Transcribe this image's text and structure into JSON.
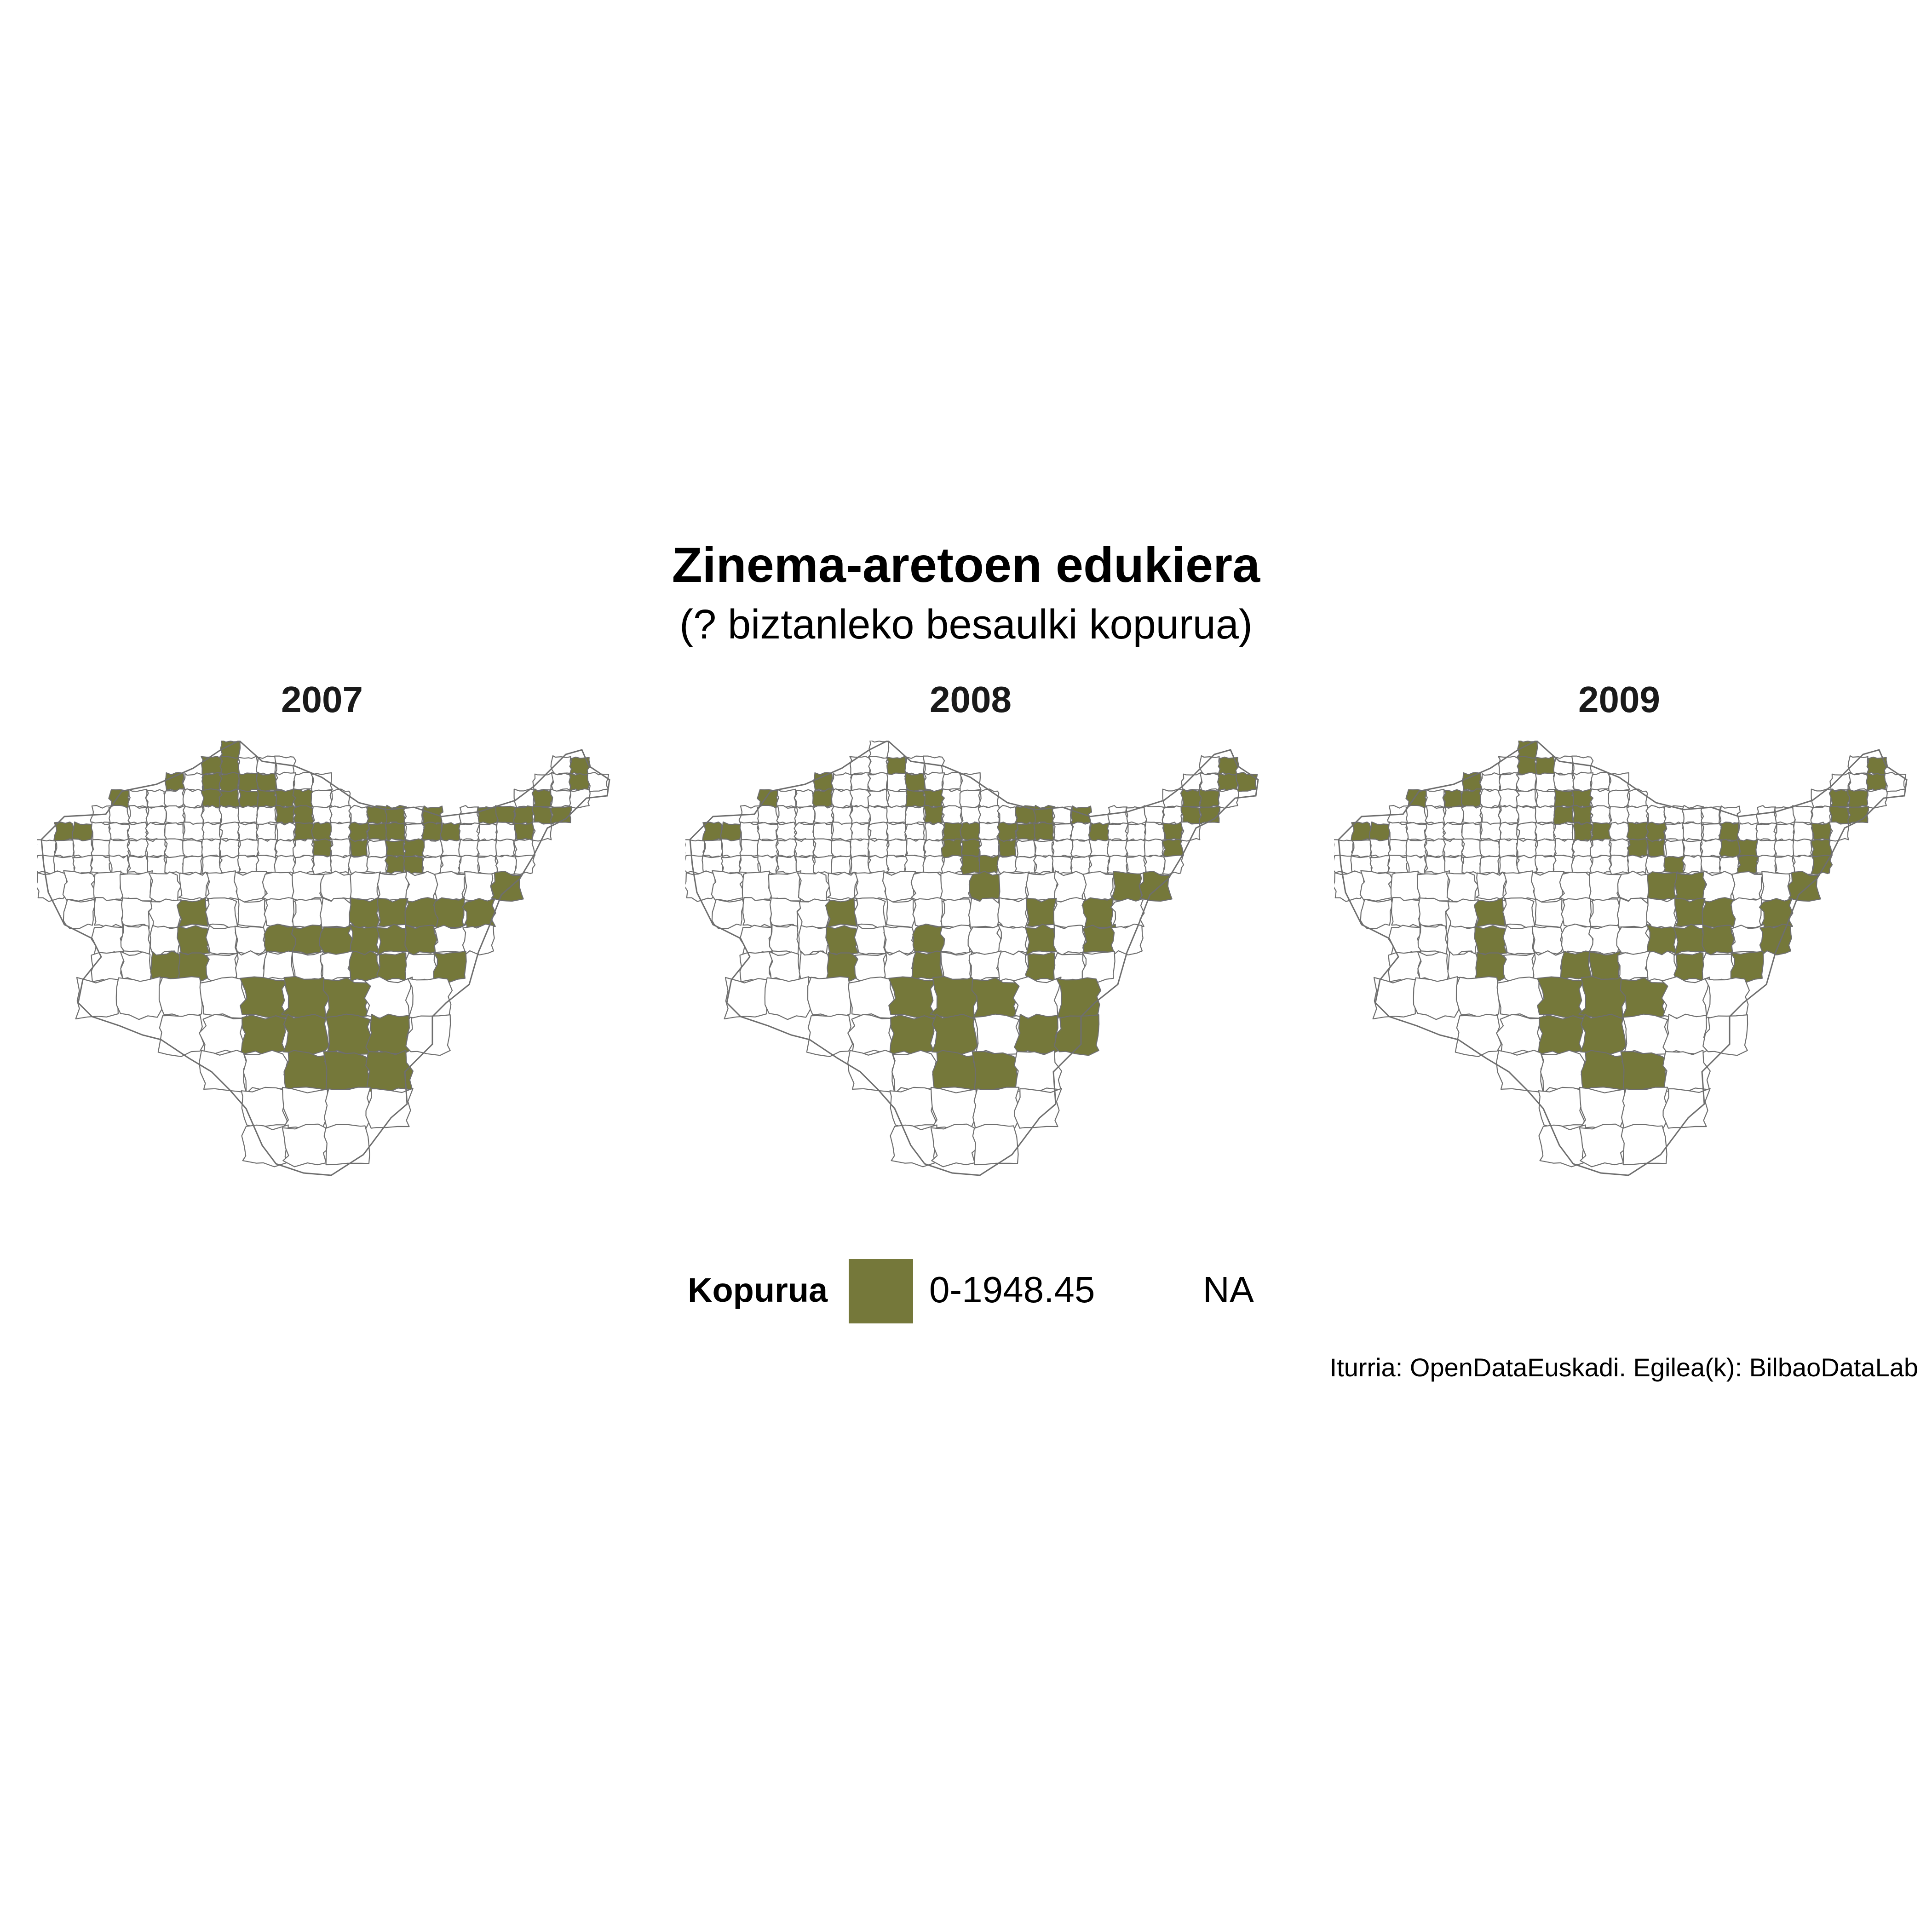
{
  "title": "Zinema-aretoen edukiera",
  "subtitle": "(? biztanleko besaulki kopurua)",
  "panels": [
    {
      "label": "2007",
      "highlighted_count": 34
    },
    {
      "label": "2008",
      "highlighted_count": 30
    },
    {
      "label": "2009",
      "highlighted_count": 30
    }
  ],
  "legend": {
    "title": "Kopurua",
    "items": [
      {
        "label": "0-1948.45",
        "color": "#75783a"
      },
      {
        "label": "NA",
        "color": "#ffffff"
      }
    ]
  },
  "caption": "Iturria: OpenDataEuskadi. Egilea(k): BilbaoDataLab",
  "colors": {
    "fill": "#75783a",
    "border": "#6e6e6e",
    "na": "#ffffff"
  }
}
